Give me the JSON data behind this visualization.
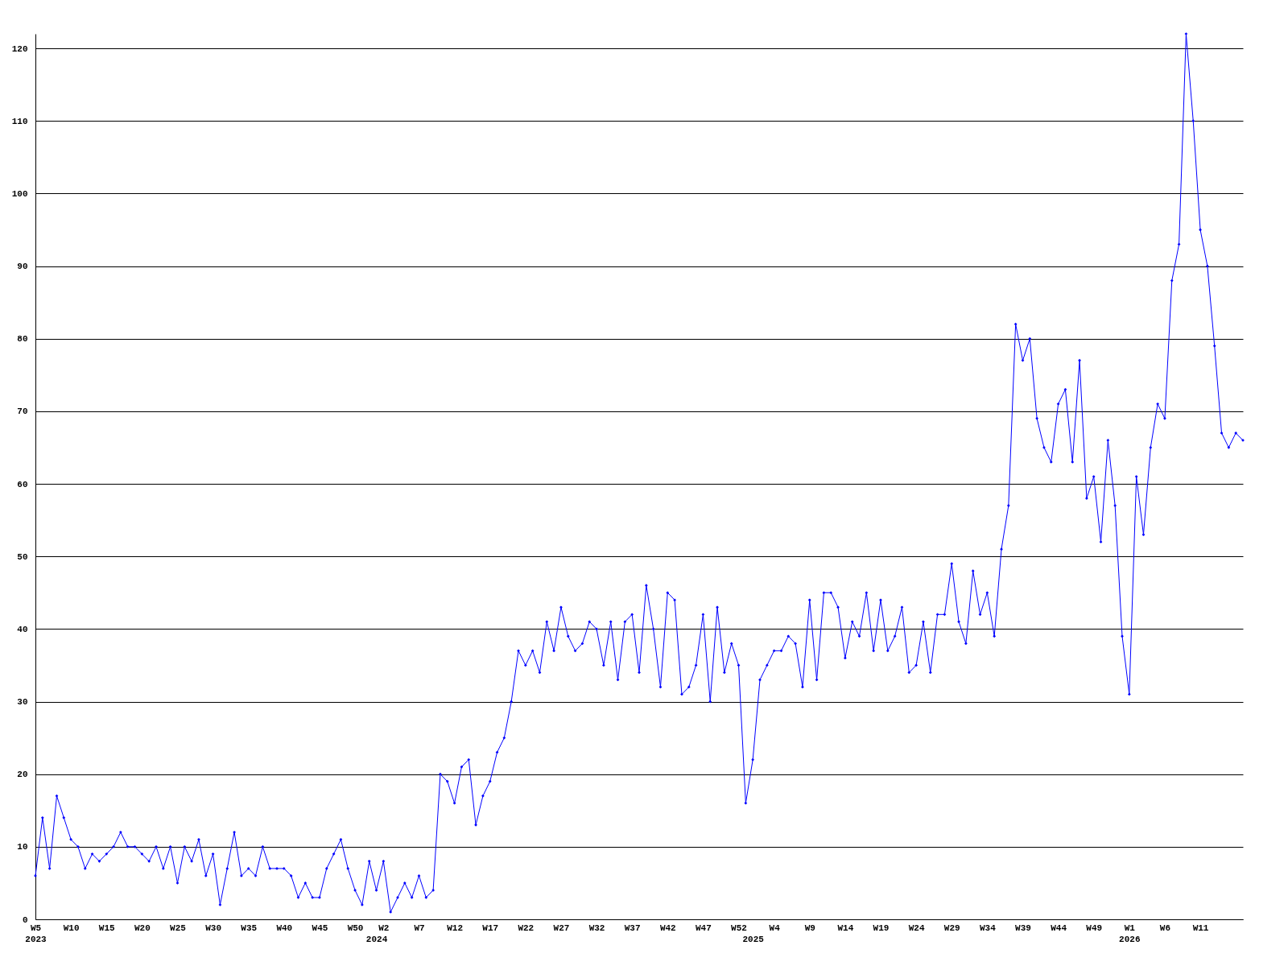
{
  "chart_data": {
    "type": "line",
    "categories": [
      "W5\n2023",
      null,
      null,
      null,
      null,
      "W10",
      null,
      null,
      null,
      null,
      "W15",
      null,
      null,
      null,
      null,
      "W20",
      null,
      null,
      null,
      null,
      "W25",
      null,
      null,
      null,
      null,
      "W30",
      null,
      null,
      null,
      null,
      "W35",
      null,
      null,
      null,
      null,
      "W40",
      null,
      null,
      null,
      null,
      "W45",
      null,
      null,
      null,
      null,
      "W50",
      null,
      null,
      "\n2024",
      "W2",
      null,
      null,
      null,
      null,
      "W7",
      null,
      null,
      null,
      null,
      "W12",
      null,
      null,
      null,
      null,
      "W17",
      null,
      null,
      null,
      null,
      "W22",
      null,
      null,
      null,
      null,
      "W27",
      null,
      null,
      null,
      null,
      "W32",
      null,
      null,
      null,
      null,
      "W37",
      null,
      null,
      null,
      null,
      "W42",
      null,
      null,
      null,
      null,
      "W47",
      null,
      null,
      null,
      null,
      "W52",
      null,
      "\n2025",
      null,
      null,
      "W4",
      null,
      null,
      null,
      null,
      "W9",
      null,
      null,
      null,
      null,
      "W14",
      null,
      null,
      null,
      null,
      "W19",
      null,
      null,
      null,
      null,
      "W24",
      null,
      null,
      null,
      null,
      "W29",
      null,
      null,
      null,
      null,
      "W34",
      null,
      null,
      null,
      null,
      "W39",
      null,
      null,
      null,
      null,
      "W44",
      null,
      null,
      null,
      null,
      "W49",
      null,
      null,
      null,
      null,
      "W1\n2026",
      null,
      null,
      null,
      null,
      "W6",
      null,
      null,
      null,
      null,
      "W11",
      null,
      null,
      null,
      null,
      null,
      null
    ],
    "values": [
      6,
      14,
      7,
      17,
      14,
      11,
      10,
      7,
      9,
      8,
      9,
      10,
      12,
      10,
      10,
      9,
      8,
      10,
      7,
      10,
      5,
      10,
      8,
      11,
      6,
      9,
      2,
      7,
      12,
      6,
      7,
      6,
      10,
      7,
      7,
      7,
      6,
      3,
      5,
      3,
      3,
      7,
      9,
      11,
      7,
      4,
      2,
      8,
      4,
      8,
      1,
      3,
      5,
      3,
      6,
      3,
      4,
      20,
      19,
      16,
      21,
      22,
      13,
      17,
      19,
      23,
      25,
      30,
      37,
      35,
      37,
      34,
      41,
      37,
      43,
      39,
      37,
      38,
      41,
      40,
      35,
      41,
      33,
      41,
      42,
      34,
      46,
      40,
      32,
      45,
      44,
      31,
      32,
      35,
      42,
      30,
      43,
      34,
      38,
      35,
      16,
      22,
      33,
      35,
      37,
      37,
      39,
      38,
      32,
      44,
      33,
      45,
      45,
      43,
      36,
      41,
      39,
      45,
      37,
      44,
      37,
      39,
      43,
      34,
      35,
      41,
      34,
      42,
      42,
      49,
      41,
      38,
      48,
      42,
      45,
      39,
      51,
      57,
      82,
      77,
      80,
      69,
      65,
      63,
      71,
      73,
      63,
      77,
      58,
      61,
      52,
      66,
      57,
      39,
      31,
      61,
      53,
      65,
      71,
      69,
      88,
      93,
      122,
      110,
      95,
      90,
      79,
      67,
      65,
      67,
      66
    ],
    "color": "#0000ff",
    "ylim": [
      0,
      122
    ],
    "yticks": [
      0,
      10,
      20,
      30,
      40,
      50,
      60,
      70,
      80,
      90,
      100,
      110,
      120
    ],
    "grid": "y",
    "marker": "diamond",
    "line_style": "solid"
  }
}
